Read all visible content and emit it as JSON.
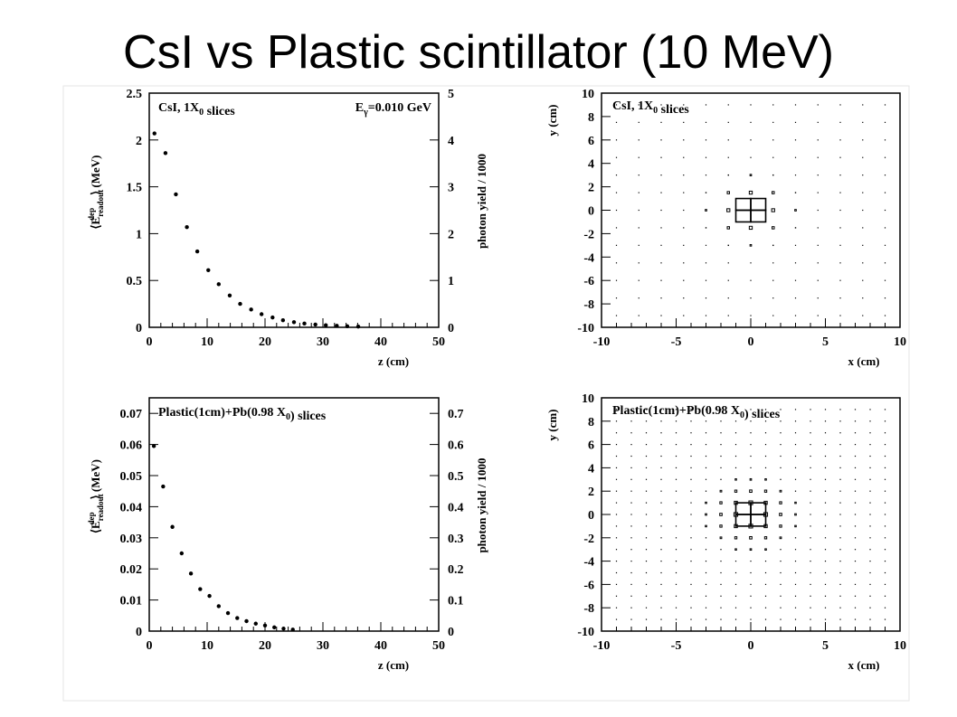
{
  "slide": {
    "title": "CsI vs Plastic scintillator (10 MeV)"
  },
  "chart_data": [
    {
      "type": "scatter",
      "title": "CsI, 1X₀ slices",
      "annotation": "Eγ=0.010 GeV",
      "xlabel": "z (cm)",
      "ylabel": "⟨E_readout^dep⟩ (MeV)",
      "ylabel_right": "photon yield / 1000",
      "xlim": [
        0,
        50
      ],
      "ylim": [
        0,
        2.5
      ],
      "ylim_right": [
        0,
        5
      ],
      "x_ticks": [
        0,
        10,
        20,
        30,
        40,
        50
      ],
      "y_ticks": [
        0,
        0.5,
        1,
        1.5,
        2,
        2.5
      ],
      "y_tick_labels": [
        "0",
        "0.5",
        "1",
        "1.5",
        "2",
        "2.5"
      ],
      "y_ticks_right": [
        0,
        1,
        2,
        3,
        4,
        5
      ],
      "x": [
        0.9,
        2.8,
        4.6,
        6.5,
        8.3,
        10.2,
        12.0,
        13.9,
        15.7,
        17.6,
        19.4,
        21.3,
        23.1,
        25.0,
        26.8,
        28.7,
        30.5,
        32.4,
        34.2,
        36.1
      ],
      "y": [
        2.07,
        1.86,
        1.42,
        1.07,
        0.81,
        0.61,
        0.46,
        0.34,
        0.25,
        0.19,
        0.14,
        0.105,
        0.075,
        0.055,
        0.04,
        0.03,
        0.022,
        0.016,
        0.011,
        0.008
      ]
    },
    {
      "type": "heatmap",
      "title": "CsI, 1X₀ slices",
      "xlabel": "x (cm)",
      "ylabel": "y (cm)",
      "xlim": [
        -10,
        10
      ],
      "ylim": [
        -10,
        10
      ],
      "x_ticks": [
        -10,
        -5,
        0,
        5,
        10
      ],
      "y_ticks": [
        -10,
        -8,
        -6,
        -4,
        -2,
        0,
        2,
        4,
        6,
        8,
        10
      ],
      "cell_size_cm": 1.5,
      "grid": "2D energy map, central block cells largest"
    },
    {
      "type": "scatter",
      "title": "Plastic(1cm)+Pb(0.98 X₀) slices",
      "xlabel": "z (cm)",
      "ylabel": "⟨E_readout^dep⟩ (MeV)",
      "ylabel_right": "photon yield / 1000",
      "xlim": [
        0,
        50
      ],
      "ylim": [
        0,
        0.075
      ],
      "ylim_right": [
        0,
        0.75
      ],
      "x_ticks": [
        0,
        10,
        20,
        30,
        40,
        50
      ],
      "y_ticks": [
        0,
        0.01,
        0.02,
        0.03,
        0.04,
        0.05,
        0.06,
        0.07
      ],
      "y_tick_labels": [
        "0",
        "0.01",
        "0.02",
        "0.03",
        "0.04",
        "0.05",
        "0.06",
        "0.07"
      ],
      "y_ticks_right": [
        0,
        0.1,
        0.2,
        0.3,
        0.4,
        0.5,
        0.6,
        0.7
      ],
      "y_tick_labels_right": [
        "0",
        "0.1",
        "0.2",
        "0.3",
        "0.4",
        "0.5",
        "0.6",
        "0.7"
      ],
      "x": [
        0.8,
        2.4,
        4.0,
        5.6,
        7.2,
        8.8,
        10.4,
        12.0,
        13.6,
        15.2,
        16.8,
        18.4,
        20.0,
        21.6,
        23.2,
        24.8
      ],
      "y": [
        0.0595,
        0.0465,
        0.0335,
        0.025,
        0.0185,
        0.0135,
        0.0113,
        0.008,
        0.0058,
        0.0042,
        0.0032,
        0.0024,
        0.0018,
        0.0012,
        0.0008,
        0.0005
      ]
    },
    {
      "type": "heatmap",
      "title": "Plastic(1cm)+Pb(0.98 X₀) slices",
      "xlabel": "x (cm)",
      "ylabel": "y (cm)",
      "xlim": [
        -10,
        10
      ],
      "ylim": [
        -10,
        10
      ],
      "x_ticks": [
        -10,
        -5,
        0,
        5,
        10
      ],
      "y_ticks": [
        -10,
        -8,
        -6,
        -4,
        -2,
        0,
        2,
        4,
        6,
        8,
        10
      ],
      "cell_size_cm": 1.0,
      "grid": "2D energy map, central block cells largest"
    }
  ]
}
